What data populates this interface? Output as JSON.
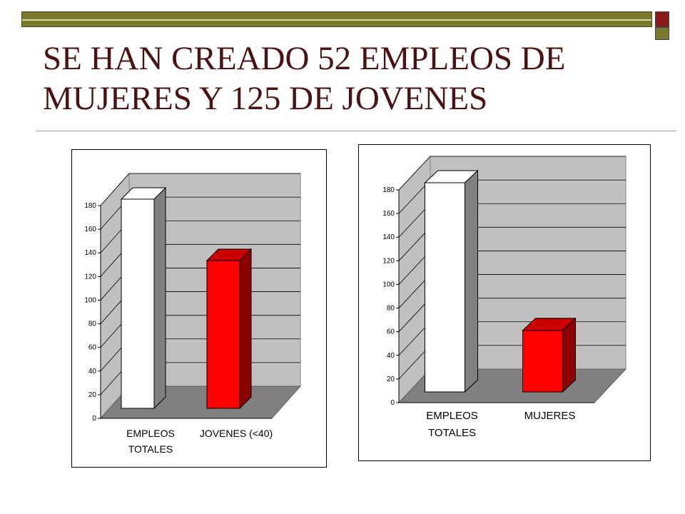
{
  "slide": {
    "title_line1": "SE HAN CREADO 52 EMPLEOS DE",
    "title_line2": "MUJERES Y 125 DE JOVENES",
    "colors": {
      "title": "#4a1212",
      "accent_olive": "#7a7a2e",
      "accent_red": "#8b1a1a"
    }
  },
  "chart_data": [
    {
      "type": "bar",
      "title": "",
      "xlabel": "",
      "ylabel": "",
      "ylim": [
        0,
        180
      ],
      "yticks": [
        "0",
        "20",
        "40",
        "60",
        "80",
        "100",
        "120",
        "140",
        "160",
        "180"
      ],
      "grid": true,
      "categories": [
        "EMPLEOS TOTALES",
        "JOVENES (<40)"
      ],
      "category_lines": [
        [
          "EMPLEOS",
          "TOTALES"
        ],
        [
          "JOVENES (<40)"
        ]
      ],
      "values": [
        177,
        125
      ],
      "bar_colors": [
        "#ffffff",
        "#ff0000"
      ]
    },
    {
      "type": "bar",
      "title": "",
      "xlabel": "",
      "ylabel": "",
      "ylim": [
        0,
        180
      ],
      "yticks": [
        "0",
        "20",
        "40",
        "60",
        "80",
        "100",
        "120",
        "140",
        "160",
        "180"
      ],
      "grid": true,
      "categories": [
        "EMPLEOS TOTALES",
        "MUJERES"
      ],
      "category_lines": [
        [
          "EMPLEOS",
          "TOTALES"
        ],
        [
          "MUJERES"
        ]
      ],
      "values": [
        177,
        52
      ],
      "bar_colors": [
        "#ffffff",
        "#ff0000"
      ]
    }
  ]
}
